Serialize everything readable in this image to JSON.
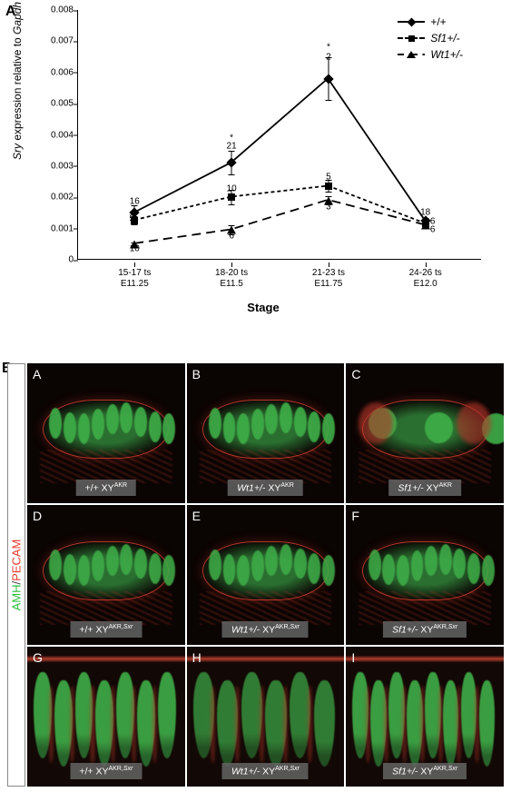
{
  "panelA_label": "A",
  "panelB_label": "B",
  "chart": {
    "type": "line",
    "ylabel_prefix": "Sry",
    "ylabel_mid": " expression relative to ",
    "ylabel_suffix": "Gapdh",
    "xlabel": "Stage",
    "ylim": [
      0,
      0.008
    ],
    "ytick_step": 0.001,
    "yticks": [
      "0",
      "0.001",
      "0.002",
      "0.003",
      "0.004",
      "0.005",
      "0.006",
      "0.007",
      "0.008"
    ],
    "xticks": [
      {
        "line1": "15-17 ts",
        "line2": "E11.25"
      },
      {
        "line1": "18-20 ts",
        "line2": "E11.5"
      },
      {
        "line1": "21-23 ts",
        "line2": "E11.75"
      },
      {
        "line1": "24-26 ts",
        "line2": "E12.0"
      }
    ],
    "x_positions_pct": [
      14,
      38,
      62,
      86
    ],
    "series": [
      {
        "name": "+/+",
        "style": "solid",
        "marker": "diamond",
        "values": [
          0.0015,
          0.0031,
          0.0058,
          0.00125
        ],
        "err": [
          0.00025,
          0.0004,
          0.0007,
          0.0001
        ]
      },
      {
        "name": "Sf1+/-",
        "style": "short-dash",
        "marker": "square",
        "values": [
          0.00125,
          0.002,
          0.00235,
          0.00115
        ],
        "err": [
          0.00015,
          0.00025,
          0.0002,
          0.0001
        ]
      },
      {
        "name": "Wt1+/-",
        "style": "long-dash",
        "marker": "triangle",
        "values": [
          0.0005,
          0.00095,
          0.0019,
          0.0011
        ],
        "err": [
          5e-05,
          0.00015,
          0.00015,
          0.0001
        ]
      }
    ],
    "annotations": [
      {
        "text": "16",
        "x_idx": 0,
        "y": 0.00185
      },
      {
        "text": "5",
        "x_idx": 0,
        "y": 0.0013,
        "dx": -3
      },
      {
        "text": "10",
        "x_idx": 0,
        "y": 0.00035
      },
      {
        "text": "*",
        "x_idx": 1,
        "y": 0.0039
      },
      {
        "text": "21",
        "x_idx": 1,
        "y": 0.00365
      },
      {
        "text": "10",
        "x_idx": 1,
        "y": 0.00227
      },
      {
        "text": "6",
        "x_idx": 1,
        "y": 0.00075
      },
      {
        "text": "*",
        "x_idx": 2,
        "y": 0.0068
      },
      {
        "text": "2",
        "x_idx": 2,
        "y": 0.0065
      },
      {
        "text": "5",
        "x_idx": 2,
        "y": 0.00265
      },
      {
        "text": "3",
        "x_idx": 2,
        "y": 0.0017
      },
      {
        "text": "18",
        "x_idx": 3,
        "y": 0.0015
      },
      {
        "text": "6",
        "x_idx": 3,
        "y": 0.00122,
        "dx": 8
      },
      {
        "text": "6",
        "x_idx": 3,
        "y": 0.00095,
        "dx": 8
      }
    ],
    "line_color": "#000000",
    "background_color": "#ffffff"
  },
  "sidebar": {
    "amh_label": "AMH",
    "slash": "/",
    "pecam_label": "PECAM",
    "amh_color": "#2dbd3a",
    "pecam_color": "#e63b2e"
  },
  "cells": [
    {
      "letter": "A",
      "genotype_pre": "+/+ ",
      "genotype_ital": "",
      "xy": "XY",
      "sup": "AKR",
      "suffix": "",
      "kind": "dark"
    },
    {
      "letter": "B",
      "genotype_pre": "",
      "genotype_ital": "Wt1+/- ",
      "xy": "XY",
      "sup": "AKR",
      "suffix": "",
      "kind": "dark"
    },
    {
      "letter": "C",
      "genotype_pre": "",
      "genotype_ital": "Sf1+/- ",
      "xy": "XY",
      "sup": "AKR",
      "suffix": "",
      "kind": "dark"
    },
    {
      "letter": "D",
      "genotype_pre": "+/+ ",
      "genotype_ital": "",
      "xy": "XY",
      "sup": "AKR,",
      "suffix": "Sxr",
      "kind": "dark"
    },
    {
      "letter": "E",
      "genotype_pre": "",
      "genotype_ital": "Wt1+/- ",
      "xy": "XY",
      "sup": "AKR,",
      "suffix": "Sxr",
      "kind": "dark"
    },
    {
      "letter": "F",
      "genotype_pre": "",
      "genotype_ital": "Sf1+/- ",
      "xy": "XY",
      "sup": "AKR,",
      "suffix": "Sxr",
      "kind": "dark"
    },
    {
      "letter": "G",
      "genotype_pre": "+/+ ",
      "genotype_ital": "",
      "xy": "XY",
      "sup": "AKR,",
      "suffix": "Sxr",
      "kind": "zoom"
    },
    {
      "letter": "H",
      "genotype_pre": "",
      "genotype_ital": "Wt1+/- ",
      "xy": "XY",
      "sup": "AKR,",
      "suffix": "Sxr",
      "kind": "zoom"
    },
    {
      "letter": "I",
      "genotype_pre": "",
      "genotype_ital": "Sf1+/- ",
      "xy": "XY",
      "sup": "AKR,",
      "suffix": "Sxr",
      "kind": "zoom"
    }
  ],
  "colors": {
    "cell_bg_dark": "#0a0403",
    "cell_bg_zoom": "#120805",
    "amh_green": "#3fae48",
    "amh_green_dim": "#2a6f30",
    "pecam_red": "#b5362a",
    "pecam_red_bright": "#d94a36"
  }
}
